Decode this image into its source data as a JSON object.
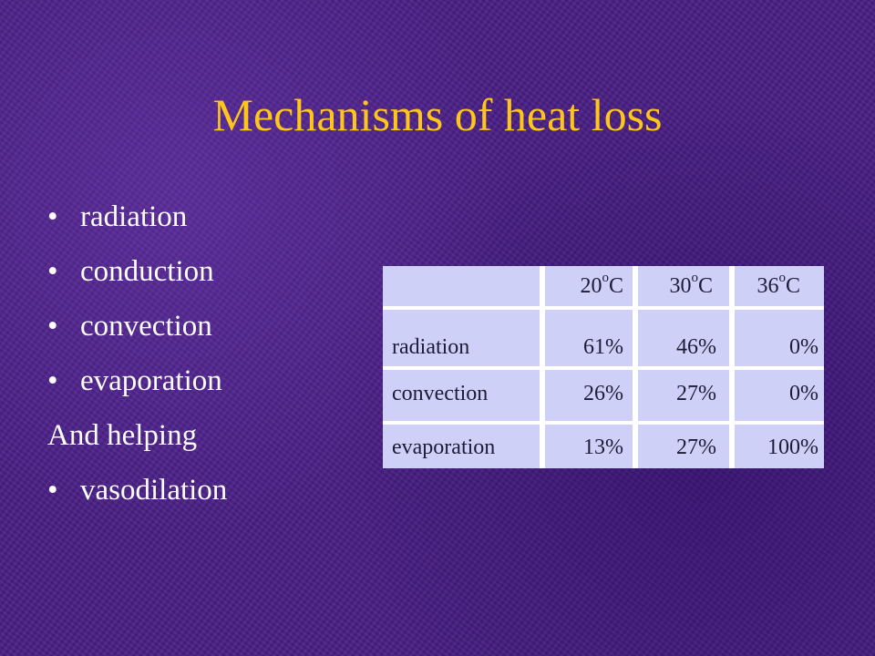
{
  "slide": {
    "title": "Mechanisms of heat loss",
    "bullet_char": "•",
    "items": [
      {
        "text": "radiation",
        "bulleted": true
      },
      {
        "text": "conduction",
        "bulleted": true
      },
      {
        "text": "convection",
        "bulleted": true
      },
      {
        "text": "evaporation",
        "bulleted": true
      },
      {
        "text": "And helping",
        "bulleted": false
      },
      {
        "text": "vasodilation",
        "bulleted": true
      }
    ]
  },
  "table": {
    "headers": [
      {
        "value": "20",
        "sup": "o",
        "unit": "C"
      },
      {
        "value": "30",
        "sup": "o",
        "unit": "C"
      },
      {
        "value": "36",
        "sup": "o",
        "unit": "C"
      }
    ],
    "rows": [
      {
        "label": "radiation",
        "values": [
          "61%",
          "46%",
          "0%"
        ]
      },
      {
        "label": "convection",
        "values": [
          "26%",
          "27%",
          "0%"
        ]
      },
      {
        "label": "evaporation",
        "values": [
          "13%",
          "27%",
          "100%"
        ]
      }
    ],
    "colors": {
      "cell_bg": "#cfd0f8",
      "grid": "#ffffff",
      "text": "#1c1c38"
    }
  },
  "colors": {
    "background": "#4a1f86",
    "title": "#ffc61a",
    "body_text": "#ffffff"
  }
}
